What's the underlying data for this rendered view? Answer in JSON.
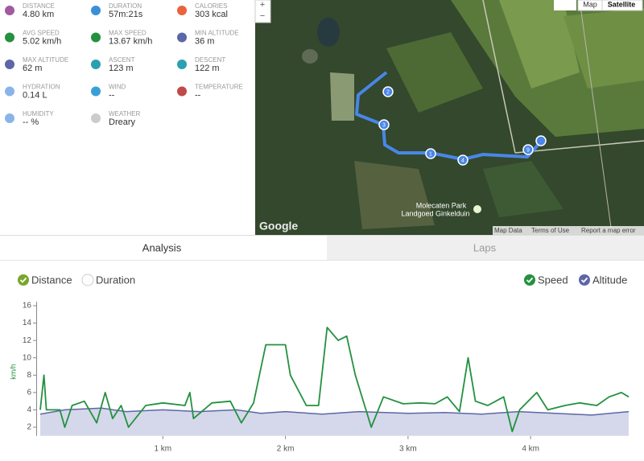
{
  "stats": [
    {
      "label": "DISTANCE",
      "value": "4.80 km"
    },
    {
      "label": "DURATION",
      "value": "57m:21s"
    },
    {
      "label": "CALORIES",
      "value": "303 kcal"
    },
    {
      "label": "AVG SPEED",
      "value": "5.02 km/h"
    },
    {
      "label": "MAX SPEED",
      "value": "13.67 km/h"
    },
    {
      "label": "MIN ALTITUDE",
      "value": "36 m"
    },
    {
      "label": "MAX ALTITUDE",
      "value": "62 m"
    },
    {
      "label": "ASCENT",
      "value": "123 m"
    },
    {
      "label": "DESCENT",
      "value": "122 m"
    },
    {
      "label": "HYDRATION",
      "value": "0.14 L"
    },
    {
      "label": "WIND",
      "value": "--"
    },
    {
      "label": "TEMPERATURE",
      "value": "--"
    },
    {
      "label": "HUMIDITY",
      "value": "-- %"
    },
    {
      "label": "WEATHER",
      "value": "Dreary"
    }
  ],
  "map": {
    "buttons": [
      "Map",
      "Satellite"
    ],
    "zoom": [
      "+",
      "−"
    ],
    "place": [
      "Molecaten Park",
      "Landgoed Ginkelduin"
    ],
    "markers": [
      "1",
      "2",
      "3",
      "4",
      "9"
    ],
    "logo": "Google",
    "footer": [
      "Map Data",
      "Terms of Use",
      "Report a map error"
    ]
  },
  "tabs": [
    "Analysis",
    "Laps"
  ],
  "toggles": {
    "x": [
      "Distance",
      "Duration"
    ],
    "series": [
      "Speed",
      "Altitude"
    ]
  },
  "chart_data": {
    "type": "line",
    "y_label": "km/h",
    "xlim": [
      0,
      4.8
    ],
    "xticks": [
      {
        "value": 1,
        "label": "1 km"
      },
      {
        "value": 2,
        "label": "2 km"
      },
      {
        "value": 3,
        "label": "3 km"
      },
      {
        "value": 4,
        "label": "4 km"
      }
    ],
    "ylim": [
      1,
      16
    ],
    "yticks": [
      2,
      4,
      6,
      8,
      10,
      12,
      14,
      16
    ],
    "series": [
      {
        "name": "Speed",
        "color": "#23913f",
        "x": [
          0,
          0.03,
          0.05,
          0.1,
          0.16,
          0.2,
          0.26,
          0.36,
          0.46,
          0.53,
          0.59,
          0.66,
          0.72,
          0.86,
          1.0,
          1.18,
          1.22,
          1.25,
          1.4,
          1.55,
          1.64,
          1.74,
          1.84,
          1.9,
          2.0,
          2.04,
          2.17,
          2.27,
          2.34,
          2.43,
          2.5,
          2.57,
          2.7,
          2.8,
          2.96,
          3.1,
          3.22,
          3.32,
          3.42,
          3.49,
          3.55,
          3.65,
          3.78,
          3.85,
          3.91,
          4.05,
          4.14,
          4.28,
          4.4,
          4.54,
          4.64,
          4.74,
          4.8
        ],
        "values": [
          4,
          8,
          4,
          4,
          4,
          2,
          4.5,
          5,
          2.5,
          6,
          3,
          4.5,
          2,
          4.5,
          4.8,
          4.5,
          6,
          3,
          4.8,
          5,
          2.5,
          4.8,
          11.5,
          11.5,
          11.5,
          8,
          4.5,
          4.5,
          13.5,
          12,
          12.5,
          8,
          2,
          5.5,
          4.7,
          4.8,
          4.7,
          5.5,
          3.8,
          10,
          5,
          4.5,
          5.5,
          1.5,
          4,
          6,
          4,
          4.5,
          4.8,
          4.5,
          5.5,
          6,
          5.5
        ]
      },
      {
        "name": "Altitude",
        "color": "#5b67a6",
        "x": [
          0,
          0.2,
          0.5,
          0.7,
          1.0,
          1.3,
          1.6,
          1.8,
          2.0,
          2.3,
          2.6,
          3.0,
          3.3,
          3.6,
          3.9,
          4.2,
          4.5,
          4.8
        ],
        "values": [
          3.5,
          4,
          4.2,
          3.8,
          4,
          3.8,
          4,
          3.6,
          3.8,
          3.5,
          3.8,
          3.6,
          3.7,
          3.5,
          3.8,
          3.6,
          3.4,
          3.8
        ]
      }
    ]
  }
}
